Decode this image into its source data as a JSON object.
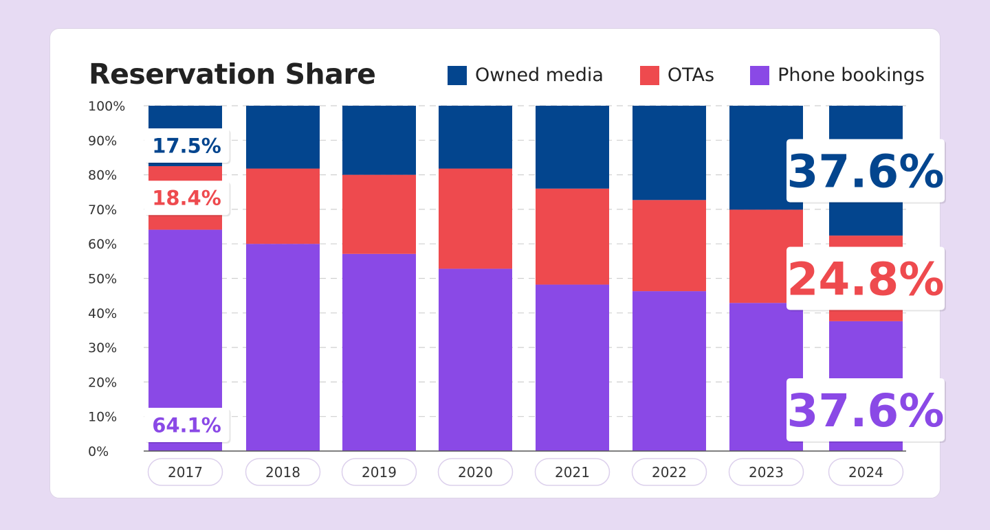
{
  "chart_data": {
    "type": "bar",
    "stacked": true,
    "title": "Reservation Share",
    "categories": [
      "2017",
      "2018",
      "2019",
      "2020",
      "2021",
      "2022",
      "2023",
      "2024"
    ],
    "series": [
      {
        "name": "Phone bookings",
        "color": "#8a49e6",
        "values": [
          64.1,
          60.0,
          57.1,
          52.8,
          48.2,
          46.3,
          42.9,
          37.6
        ]
      },
      {
        "name": "OTAs",
        "color": "#ee4a4e",
        "values": [
          18.4,
          21.8,
          22.9,
          29.0,
          27.8,
          26.4,
          27.0,
          24.8
        ]
      },
      {
        "name": "Owned media",
        "color": "#03458e",
        "values": [
          17.5,
          18.2,
          20.0,
          18.2,
          24.0,
          27.3,
          30.1,
          37.6
        ]
      }
    ],
    "yticks": [
      "0%",
      "10%",
      "20%",
      "30%",
      "40%",
      "50%",
      "60%",
      "70%",
      "80%",
      "90%",
      "100%"
    ],
    "ylim": [
      0,
      100
    ],
    "xlabel": "",
    "ylabel": "",
    "legend_position": "top-right",
    "data_labels": [
      {
        "category": "2017",
        "series": "Owned media",
        "text": "17.5%",
        "size": "small"
      },
      {
        "category": "2017",
        "series": "OTAs",
        "text": "18.4%",
        "size": "small"
      },
      {
        "category": "2017",
        "series": "Phone bookings",
        "text": "64.1%",
        "size": "small"
      },
      {
        "category": "2024",
        "series": "Owned media",
        "text": "37.6%",
        "size": "large"
      },
      {
        "category": "2024",
        "series": "OTAs",
        "text": "24.8%",
        "size": "large"
      },
      {
        "category": "2024",
        "series": "Phone bookings",
        "text": "37.6%",
        "size": "large"
      }
    ]
  }
}
